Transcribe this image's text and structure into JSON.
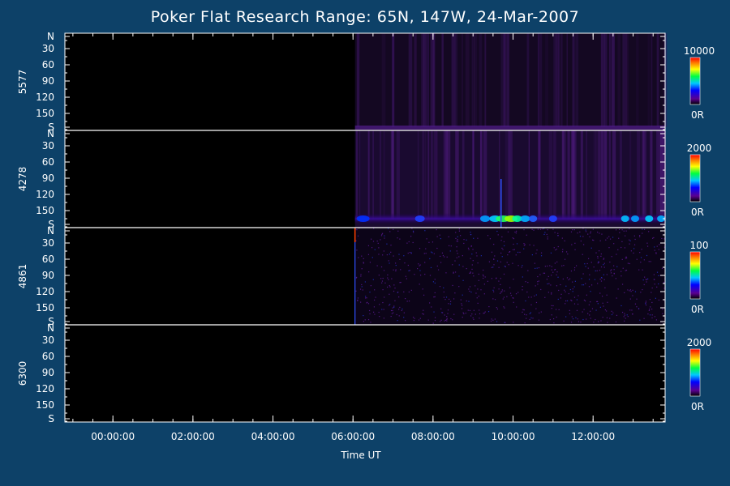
{
  "chart_data": {
    "type": "heatmap",
    "title": "Poker Flat Research Range: 65N, 147W, 24-Mar-2007",
    "xlabel": "Time UT",
    "x_tick_labels": [
      "00:00:00",
      "02:00:00",
      "04:00:00",
      "06:00:00",
      "08:00:00",
      "10:00:00",
      "12:00:00"
    ],
    "data_start": "06:00:00",
    "panels": [
      {
        "ylabel": "5577",
        "y_tick_labels": [
          "N",
          "30",
          "60",
          "90",
          "120",
          "150",
          "S"
        ],
        "colorbar_max": "10000",
        "colorbar_min": "0R"
      },
      {
        "ylabel": "4278",
        "y_tick_labels": [
          "N",
          "30",
          "60",
          "90",
          "120",
          "150",
          "S"
        ],
        "colorbar_max": "2000",
        "colorbar_min": "0R"
      },
      {
        "ylabel": "4861",
        "y_tick_labels": [
          "N",
          "30",
          "60",
          "90",
          "120",
          "150",
          "S"
        ],
        "colorbar_max": "100",
        "colorbar_min": "0R"
      },
      {
        "ylabel": "6300",
        "y_tick_labels": [
          "N",
          "30",
          "60",
          "90",
          "120",
          "150",
          "S"
        ],
        "colorbar_max": "2000",
        "colorbar_min": "0R"
      }
    ]
  }
}
